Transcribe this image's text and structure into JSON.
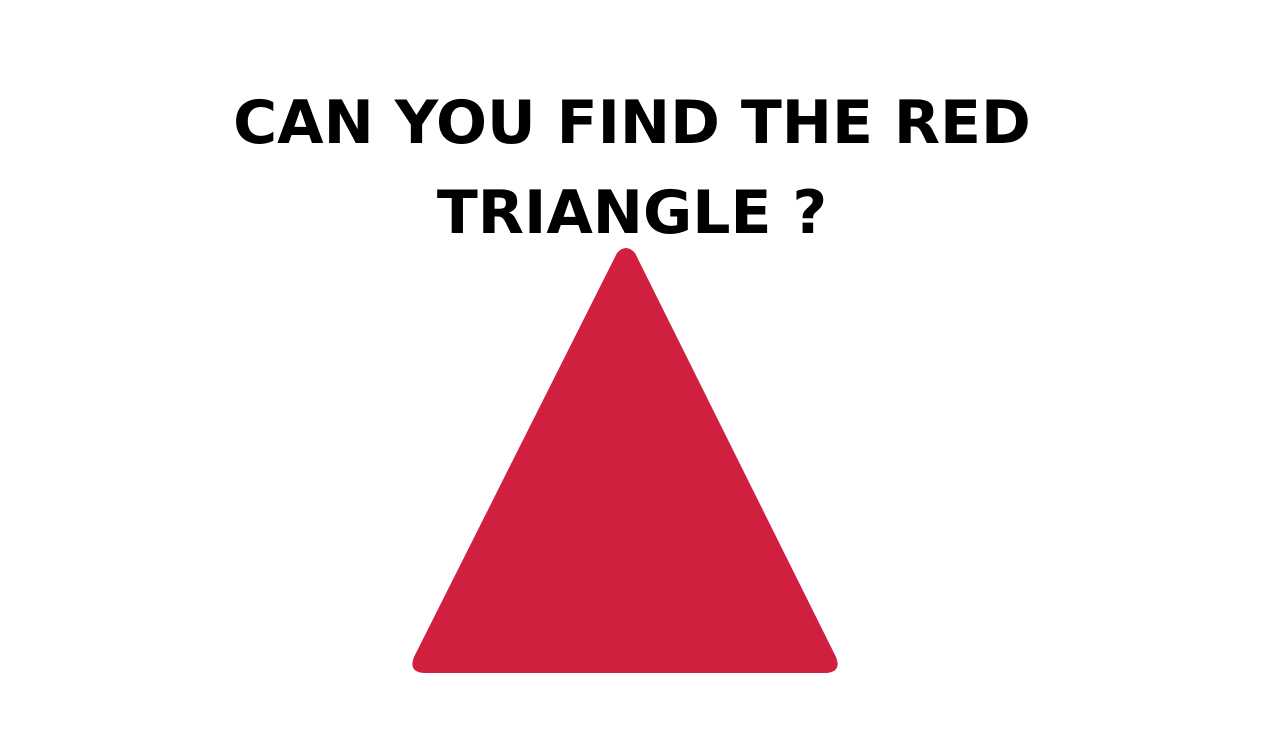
{
  "puzzle": {
    "title_line_1": "CAN YOU FIND THE RED",
    "title_line_2": "TRIANGLE ?"
  },
  "colors": {
    "background": "#ffffff",
    "title_text": "#000000",
    "triangle_fill": "#d11f40"
  },
  "shape": {
    "icon": "triangle-icon"
  }
}
